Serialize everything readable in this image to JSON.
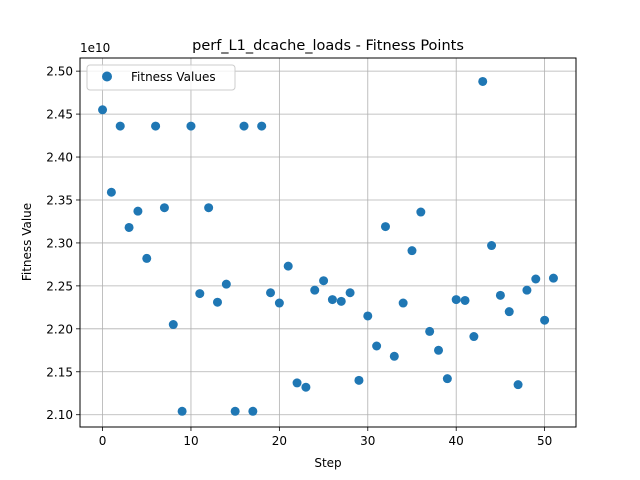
{
  "chart_data": {
    "type": "scatter",
    "title": "perf_L1_dcache_loads - Fitness Points",
    "xlabel": "Step",
    "ylabel": "Fitness Value",
    "y_offset_label": "1e10",
    "y_scale_factor": 10000000000,
    "xlim": [
      -2.55,
      53.55
    ],
    "ylim": [
      2.0857,
      2.5153
    ],
    "x_ticks": [
      0,
      10,
      20,
      30,
      40,
      50
    ],
    "y_ticks": [
      2.1,
      2.15,
      2.2,
      2.25,
      2.3,
      2.35,
      2.4,
      2.45,
      2.5
    ],
    "y_tick_labels": [
      "2.10",
      "2.15",
      "2.20",
      "2.25",
      "2.30",
      "2.35",
      "2.40",
      "2.45",
      "2.50"
    ],
    "grid": true,
    "legend_position": "top-left",
    "series": [
      {
        "name": "Fitness Values",
        "color": "#1f77b4",
        "x": [
          0,
          1,
          2,
          3,
          4,
          5,
          6,
          7,
          8,
          9,
          10,
          11,
          12,
          13,
          14,
          15,
          16,
          17,
          18,
          19,
          20,
          21,
          22,
          23,
          24,
          25,
          26,
          27,
          28,
          29,
          30,
          31,
          32,
          33,
          34,
          35,
          36,
          37,
          38,
          39,
          40,
          41,
          42,
          43,
          44,
          45,
          46,
          47,
          48,
          49,
          50,
          51
        ],
        "y": [
          2.455,
          2.359,
          2.436,
          2.318,
          2.337,
          2.282,
          2.436,
          2.341,
          2.205,
          2.104,
          2.436,
          2.241,
          2.341,
          2.231,
          2.252,
          2.104,
          2.436,
          2.104,
          2.436,
          2.242,
          2.23,
          2.273,
          2.137,
          2.132,
          2.245,
          2.256,
          2.234,
          2.232,
          2.242,
          2.14,
          2.215,
          2.18,
          2.319,
          2.168,
          2.23,
          2.291,
          2.336,
          2.197,
          2.175,
          2.142,
          2.234,
          2.233,
          2.191,
          2.488,
          2.297,
          2.239,
          2.22,
          2.135,
          2.245,
          2.258,
          2.21,
          2.259
        ]
      }
    ]
  }
}
